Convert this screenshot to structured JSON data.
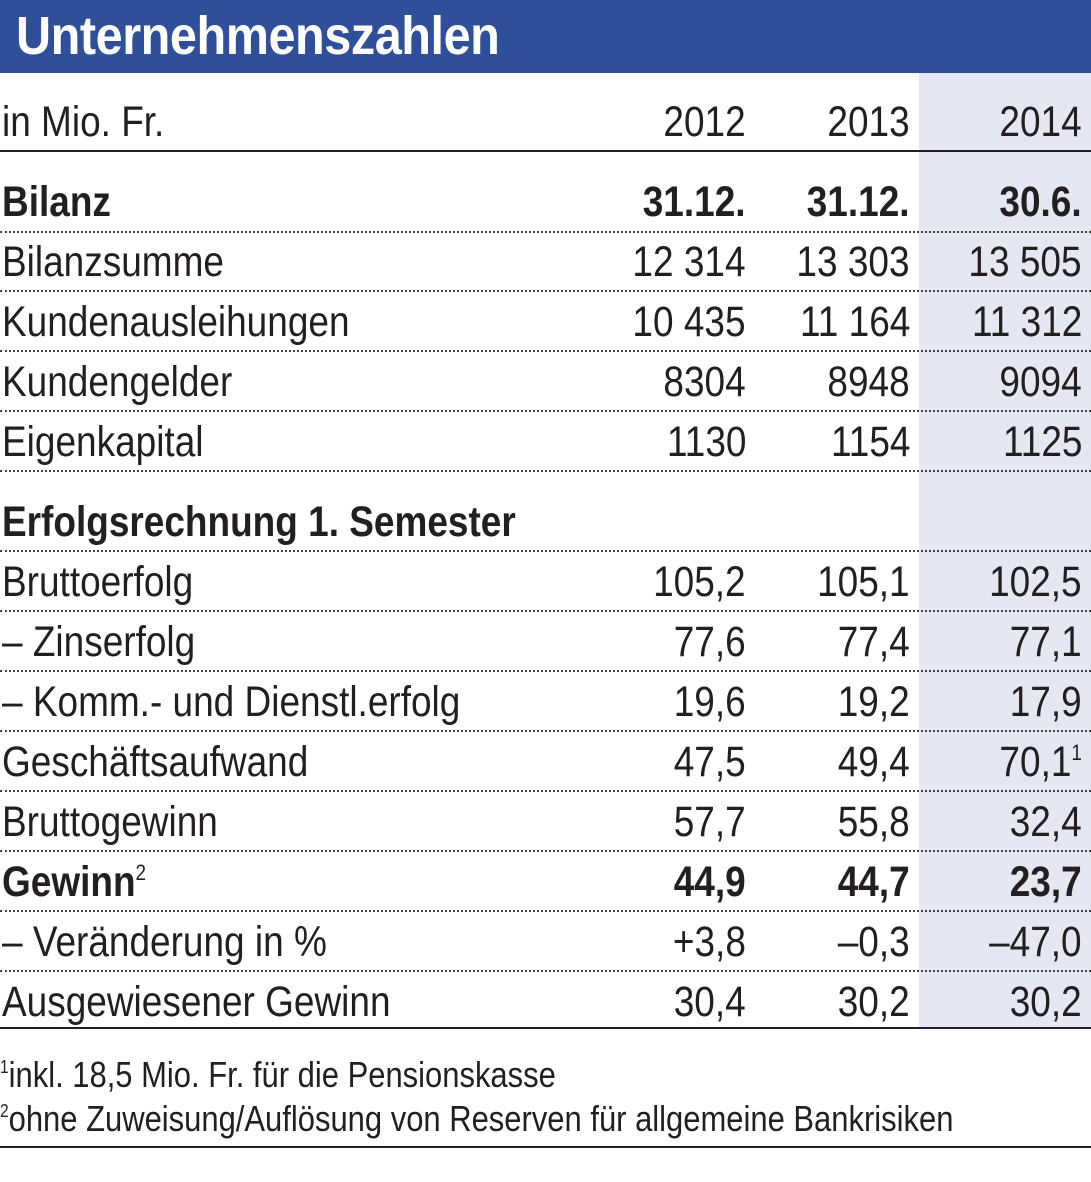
{
  "title": "Unternehmenszahlen",
  "header": {
    "unit": "in Mio. Fr.",
    "years": [
      "2012",
      "2013",
      "2014"
    ]
  },
  "section_bilanz": {
    "label": "Bilanz",
    "dates": [
      "31.12.",
      "31.12.",
      "30.6."
    ]
  },
  "bilanz_rows": [
    {
      "label": "Bilanzsumme",
      "values": [
        "12 314",
        "13 303",
        "13 505"
      ]
    },
    {
      "label": "Kundenausleihungen",
      "values": [
        "10 435",
        "11 164",
        "11 312"
      ]
    },
    {
      "label": "Kundengelder",
      "values": [
        "8304",
        "8948",
        "9094"
      ]
    },
    {
      "label": "Eigenkapital",
      "values": [
        "1130",
        "1154",
        "1125"
      ]
    }
  ],
  "section_erfolg": {
    "label": "Erfolgsrechnung 1. Semester"
  },
  "erfolg_rows": [
    {
      "label": "Bruttoerfolg",
      "values": [
        "105,2",
        "105,1",
        "102,5"
      ]
    },
    {
      "label": "– Zinserfolg",
      "values": [
        "77,6",
        "77,4",
        "77,1"
      ]
    },
    {
      "label": "– Komm.- und Dienstl.erfolg",
      "values": [
        "19,6",
        "19,2",
        "17,9"
      ]
    },
    {
      "label": "Geschäftsaufwand",
      "values": [
        "47,5",
        "49,4",
        "70,1"
      ],
      "note": "1"
    },
    {
      "label": "Bruttogewinn",
      "values": [
        "57,7",
        "55,8",
        "32,4"
      ]
    }
  ],
  "gewinn_row": {
    "label": "Gewinn",
    "note": "2",
    "values": [
      "44,9",
      "44,7",
      "23,7"
    ]
  },
  "after_rows": [
    {
      "label": "– Veränderung in %",
      "values": [
        "+3,8",
        "–0,3",
        "–47,0"
      ]
    },
    {
      "label": "Ausgewiesener Gewinn",
      "values": [
        "30,4",
        "30,2",
        "30,2"
      ]
    }
  ],
  "footnotes": [
    {
      "mark": "1",
      "text": "inkl. 18,5 Mio. Fr. für die Pensionskasse"
    },
    {
      "mark": "2",
      "text": "ohne Zuweisung/Auflösung von Reserven für allgemeine Bankrisiken"
    }
  ]
}
